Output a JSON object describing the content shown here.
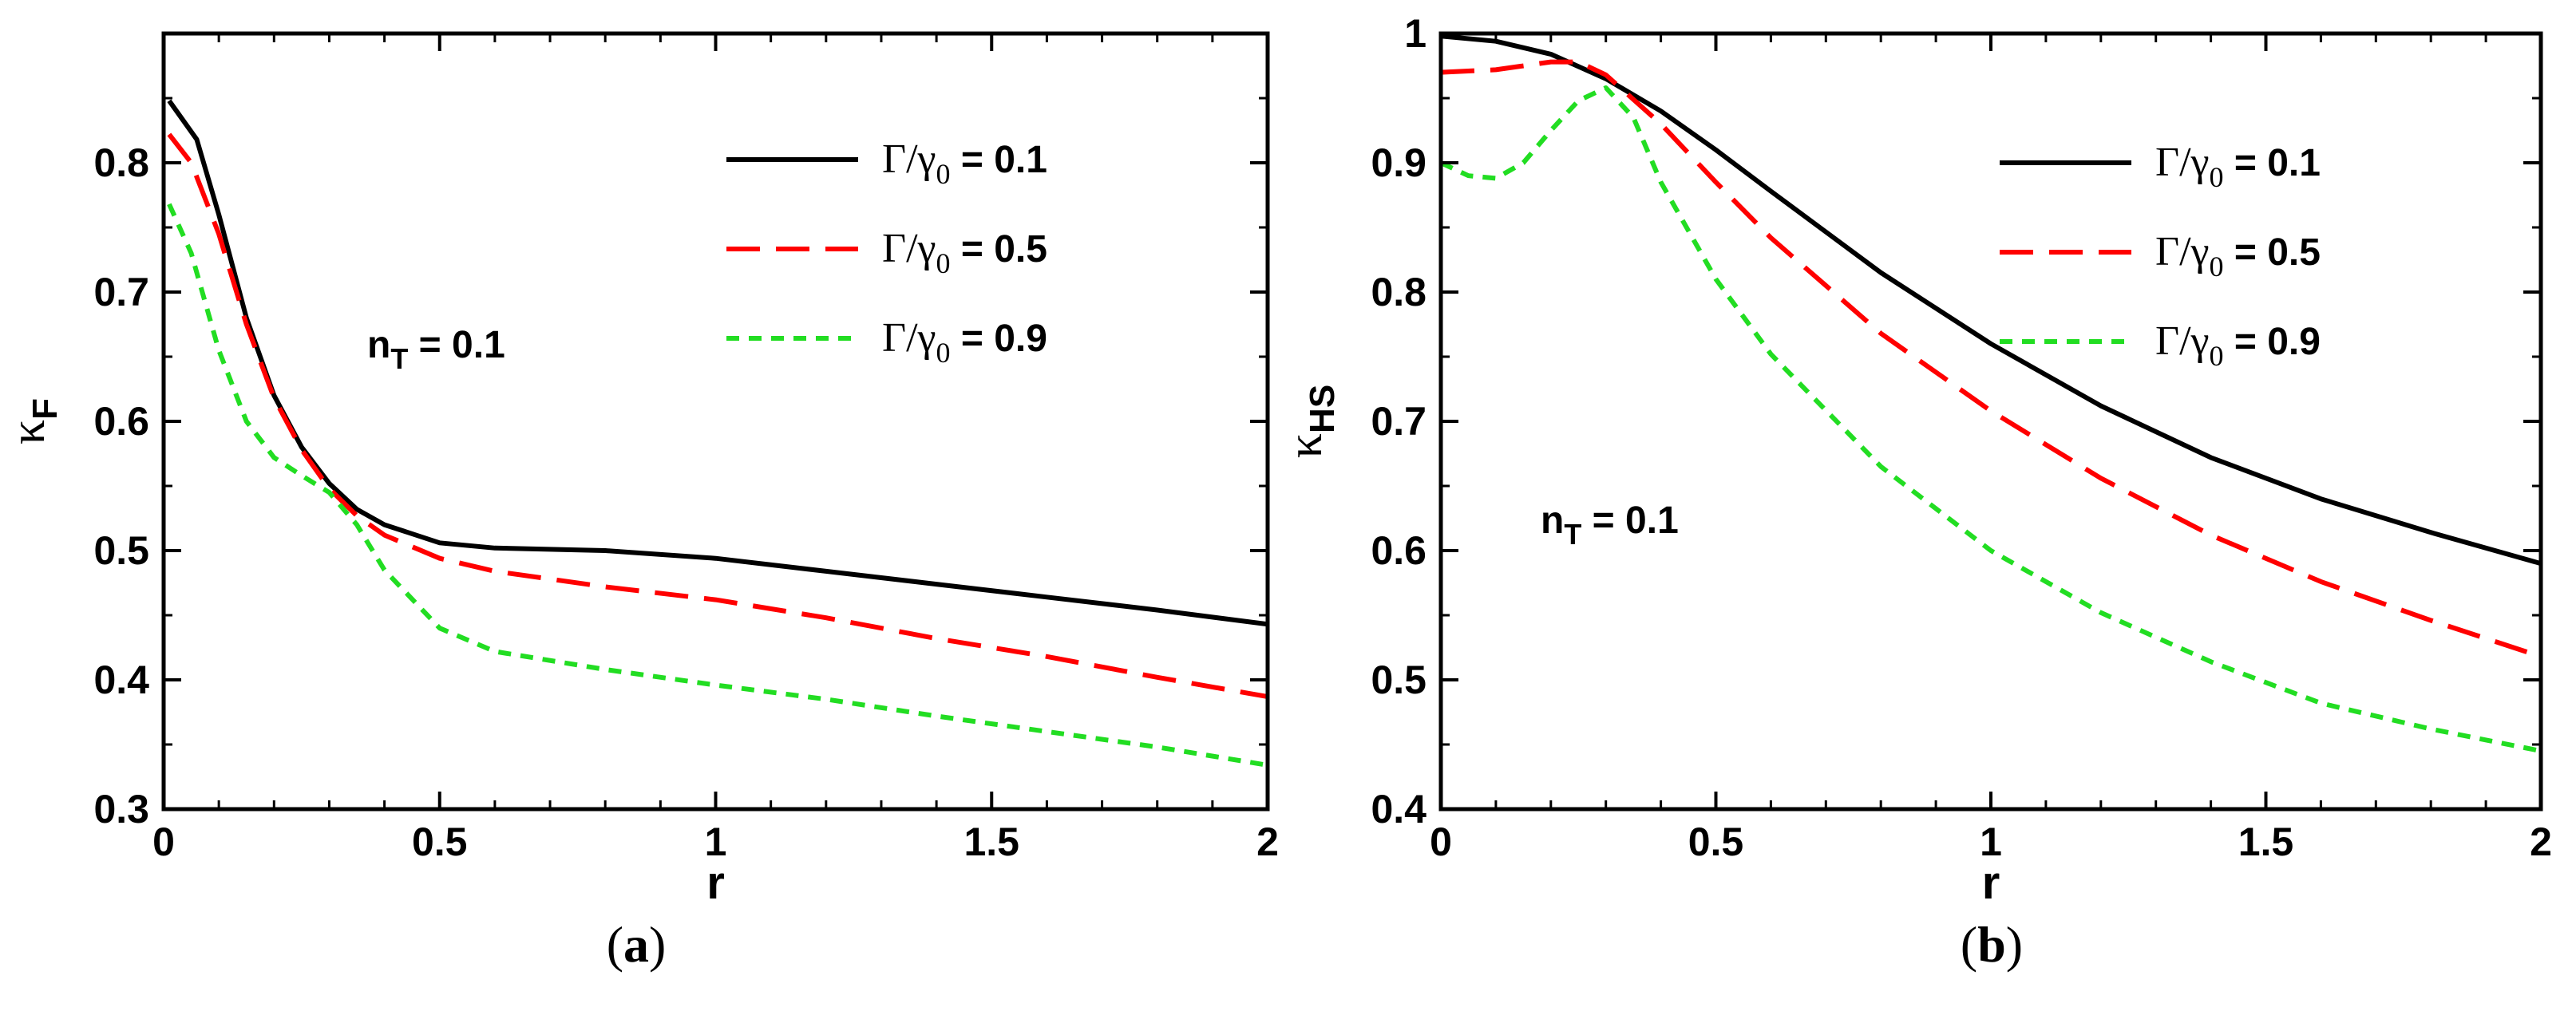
{
  "chart_data": [
    {
      "type": "line",
      "panel_label": "(a)",
      "xlabel": "r",
      "ylabel_symbol": "κ",
      "ylabel_sub": "F",
      "xlim": [
        0,
        2
      ],
      "ylim": [
        0.3,
        0.9
      ],
      "xticks": [
        "0",
        "0.5",
        "1",
        "1.5",
        "2"
      ],
      "yticks": [
        "0.3",
        "0.4",
        "0.5",
        "0.6",
        "0.7",
        "0.8"
      ],
      "annotation_main": "n",
      "annotation_sub": "T",
      "annotation_value": " = 0.1",
      "series": [
        {
          "name": "Γ/γ0 = 0.1",
          "legend_symbol": "Γ/γ",
          "legend_sub": "0",
          "legend_value": " = 0.1",
          "color": "#000000",
          "dash": "solid",
          "x": [
            0.01,
            0.06,
            0.1,
            0.15,
            0.2,
            0.25,
            0.3,
            0.35,
            0.4,
            0.5,
            0.6,
            0.8,
            1.0,
            1.2,
            1.4,
            1.6,
            1.8,
            2.0
          ],
          "y": [
            0.848,
            0.818,
            0.76,
            0.68,
            0.62,
            0.58,
            0.552,
            0.532,
            0.52,
            0.506,
            0.502,
            0.5,
            0.494,
            0.484,
            0.474,
            0.464,
            0.454,
            0.443
          ]
        },
        {
          "name": "Γ/γ0 = 0.5",
          "legend_symbol": "Γ/γ",
          "legend_sub": "0",
          "legend_value": " = 0.5",
          "color": "#ff0000",
          "dash": "long",
          "x": [
            0.01,
            0.05,
            0.1,
            0.15,
            0.2,
            0.25,
            0.3,
            0.35,
            0.4,
            0.5,
            0.6,
            0.8,
            1.0,
            1.2,
            1.4,
            1.6,
            1.8,
            2.0
          ],
          "y": [
            0.822,
            0.8,
            0.745,
            0.675,
            0.618,
            0.578,
            0.548,
            0.527,
            0.512,
            0.494,
            0.484,
            0.472,
            0.462,
            0.448,
            0.432,
            0.418,
            0.402,
            0.387
          ]
        },
        {
          "name": "Γ/γ0 = 0.9",
          "legend_symbol": "Γ/γ",
          "legend_sub": "0",
          "legend_value": " = 0.9",
          "color": "#22dd22",
          "dash": "short",
          "x": [
            0.01,
            0.05,
            0.1,
            0.15,
            0.2,
            0.25,
            0.3,
            0.35,
            0.4,
            0.5,
            0.6,
            0.8,
            1.0,
            1.2,
            1.4,
            1.6,
            1.8,
            2.0
          ],
          "y": [
            0.768,
            0.73,
            0.655,
            0.6,
            0.572,
            0.558,
            0.545,
            0.52,
            0.485,
            0.44,
            0.422,
            0.408,
            0.396,
            0.385,
            0.372,
            0.36,
            0.348,
            0.334
          ]
        }
      ]
    },
    {
      "type": "line",
      "panel_label": "(b)",
      "xlabel": "r",
      "ylabel_symbol": "κ",
      "ylabel_sub": "HS",
      "xlim": [
        0,
        2
      ],
      "ylim": [
        0.4,
        1.0
      ],
      "xticks": [
        "0",
        "0.5",
        "1",
        "1.5",
        "2"
      ],
      "yticks": [
        "0.4",
        "0.5",
        "0.6",
        "0.7",
        "0.8",
        "0.9",
        "1"
      ],
      "annotation_main": "n",
      "annotation_sub": "T",
      "annotation_value": " = 0.1",
      "series": [
        {
          "name": "Γ/γ0 = 0.1",
          "legend_symbol": "Γ/γ",
          "legend_sub": "0",
          "legend_value": " = 0.1",
          "color": "#000000",
          "dash": "solid",
          "x": [
            0.0,
            0.1,
            0.2,
            0.3,
            0.4,
            0.5,
            0.6,
            0.8,
            1.0,
            1.2,
            1.4,
            1.6,
            1.8,
            2.0
          ],
          "y": [
            0.998,
            0.994,
            0.984,
            0.965,
            0.94,
            0.91,
            0.878,
            0.815,
            0.76,
            0.712,
            0.672,
            0.64,
            0.614,
            0.59
          ]
        },
        {
          "name": "Γ/γ0 = 0.5",
          "legend_symbol": "Γ/γ",
          "legend_sub": "0",
          "legend_value": " = 0.5",
          "color": "#ff0000",
          "dash": "long",
          "x": [
            0.0,
            0.1,
            0.2,
            0.25,
            0.3,
            0.4,
            0.5,
            0.6,
            0.8,
            1.0,
            1.2,
            1.4,
            1.6,
            1.8,
            2.0
          ],
          "y": [
            0.97,
            0.972,
            0.978,
            0.978,
            0.968,
            0.93,
            0.885,
            0.842,
            0.768,
            0.708,
            0.656,
            0.612,
            0.576,
            0.546,
            0.518
          ]
        },
        {
          "name": "Γ/γ0 = 0.9",
          "legend_symbol": "Γ/γ",
          "legend_sub": "0",
          "legend_value": " = 0.9",
          "color": "#22dd22",
          "dash": "short",
          "x": [
            0.0,
            0.05,
            0.1,
            0.15,
            0.2,
            0.25,
            0.3,
            0.35,
            0.4,
            0.5,
            0.6,
            0.8,
            1.0,
            1.2,
            1.4,
            1.6,
            1.8,
            2.0
          ],
          "y": [
            0.9,
            0.89,
            0.888,
            0.9,
            0.925,
            0.948,
            0.958,
            0.935,
            0.885,
            0.81,
            0.752,
            0.665,
            0.6,
            0.552,
            0.514,
            0.482,
            0.462,
            0.445
          ]
        }
      ]
    }
  ]
}
